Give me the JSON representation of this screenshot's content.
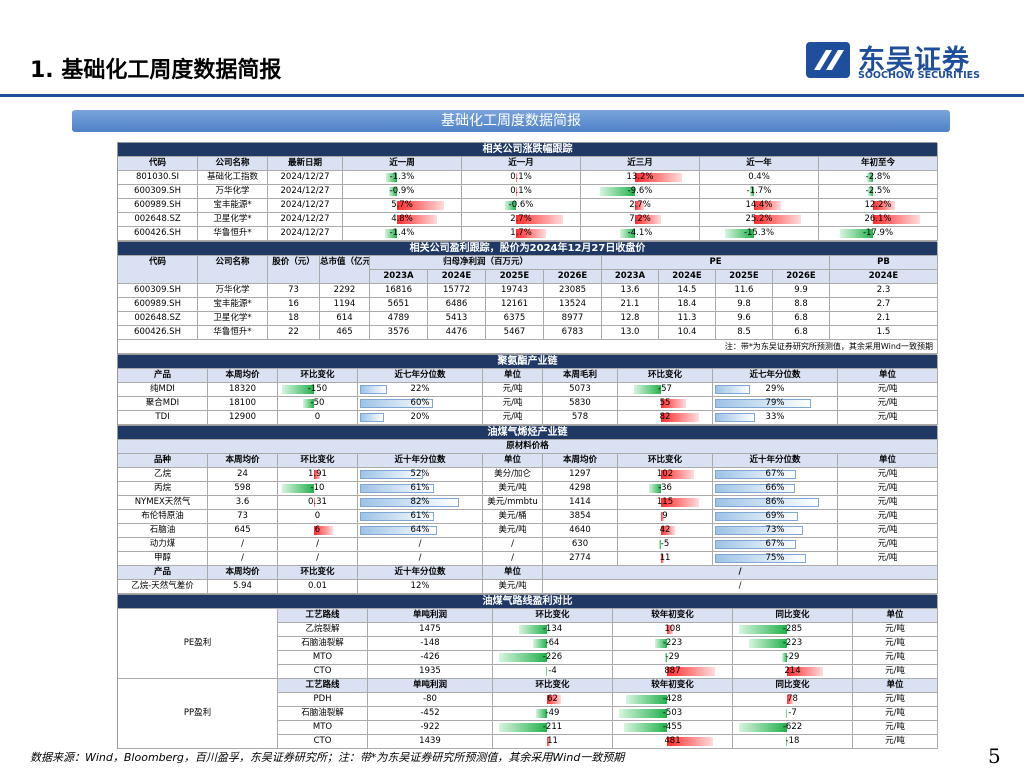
{
  "header": {
    "title": "1. 基础化工周度数据简报",
    "logo_name": "东吴证券",
    "logo_en": "SOOCHOW SECURITIES",
    "banner": "基础化工周度数据简报"
  },
  "price_tracking": {
    "title": "相关公司涨跌幅跟踪",
    "header": [
      "代码",
      "公司名称",
      "最新日期",
      "近一周",
      "近一月",
      "近三月",
      "近一年",
      "年初至今"
    ],
    "rows": [
      [
        "801030.SI",
        "基础化工指数",
        "2024/12/27",
        "-1.3%",
        "0.1%",
        "13.2%",
        "0.4%",
        "-2.8%"
      ],
      [
        "600309.SH",
        "万华化学",
        "2024/12/27",
        "-0.9%",
        "0.1%",
        "-9.6%",
        "-1.7%",
        "-2.5%"
      ],
      [
        "600989.SH",
        "宝丰能源*",
        "2024/12/27",
        "5.7%",
        "-0.6%",
        "2.7%",
        "14.4%",
        "12.2%"
      ],
      [
        "002648.SZ",
        "卫星化学*",
        "2024/12/27",
        "4.8%",
        "2.7%",
        "7.2%",
        "25.2%",
        "26.1%"
      ],
      [
        "600426.SH",
        "华鲁恒升*",
        "2024/12/27",
        "-1.4%",
        "1.7%",
        "-4.1%",
        "-15.3%",
        "-17.9%"
      ]
    ]
  },
  "profit_tracking": {
    "title": "相关公司盈利跟踪，股价为2024年12月27日收盘价",
    "header_top": [
      "代码",
      "公司名称",
      "股价（元）",
      "总市值（亿元）",
      "归母净利润（百万元）",
      "PE",
      "PB"
    ],
    "header_years": [
      "2023A",
      "2024E",
      "2025E",
      "2026E",
      "2023A",
      "2024E",
      "2025E",
      "2026E",
      "2024E"
    ],
    "rows": [
      [
        "600309.SH",
        "万华化学",
        "73",
        "2292",
        "16816",
        "15772",
        "19743",
        "23085",
        "13.6",
        "14.5",
        "11.6",
        "9.9",
        "2.3"
      ],
      [
        "600989.SH",
        "宝丰能源*",
        "16",
        "1194",
        "5651",
        "6486",
        "12161",
        "13524",
        "21.1",
        "18.4",
        "9.8",
        "8.8",
        "2.7"
      ],
      [
        "002648.SZ",
        "卫星化学*",
        "18",
        "614",
        "4789",
        "5413",
        "6375",
        "8977",
        "12.8",
        "11.3",
        "9.6",
        "6.8",
        "2.1"
      ],
      [
        "600426.SH",
        "华鲁恒升*",
        "22",
        "465",
        "3576",
        "4476",
        "5467",
        "6783",
        "13.0",
        "10.4",
        "8.5",
        "6.8",
        "1.5"
      ]
    ],
    "note": "注：带*为东吴证券研究所预测值，其余采用Wind一致预期"
  },
  "polyurethane": {
    "title": "聚氨酯产业链",
    "header": [
      "产品",
      "本周均价",
      "环比变化",
      "近七年分位数",
      "单位",
      "本周毛利",
      "环比变化",
      "近七年分位数",
      "单位"
    ],
    "rows": [
      [
        "纯MDI",
        "18320",
        "-150",
        "22%",
        "元/吨",
        "5073",
        "-57",
        "29%",
        "元/吨"
      ],
      [
        "聚合MDI",
        "18100",
        "-50",
        "60%",
        "元/吨",
        "5830",
        "55",
        "79%",
        "元/吨"
      ],
      [
        "TDI",
        "12900",
        "0",
        "20%",
        "元/吨",
        "578",
        "82",
        "33%",
        "元/吨"
      ]
    ]
  },
  "olefin": {
    "title": "油煤气烯烃产业链",
    "subtitle": "原材料价格",
    "header": [
      "品种",
      "本周均价",
      "环比变化",
      "近十年分位数",
      "单位",
      "本周均价",
      "环比变化",
      "近十年分位数",
      "单位"
    ],
    "rows": [
      [
        "乙烷",
        "24",
        "1.91",
        "52%",
        "美分/加仑",
        "1297",
        "102",
        "67%",
        "元/吨"
      ],
      [
        "丙烷",
        "598",
        "-10",
        "61%",
        "美元/吨",
        "4298",
        "-36",
        "66%",
        "元/吨"
      ],
      [
        "NYMEX天然气",
        "3.6",
        "0.31",
        "82%",
        "美元/mmbtu",
        "1414",
        "115",
        "86%",
        "元/吨"
      ],
      [
        "布伦特原油",
        "73",
        "0",
        "61%",
        "美元/桶",
        "3854",
        "9",
        "69%",
        "元/吨"
      ],
      [
        "石脑油",
        "645",
        "6",
        "64%",
        "美元/吨",
        "4640",
        "42",
        "73%",
        "元/吨"
      ],
      [
        "动力煤",
        "/",
        "/",
        "/",
        "/",
        "630",
        "-5",
        "67%",
        "元/吨"
      ],
      [
        "甲醇",
        "/",
        "/",
        "/",
        "/",
        "2774",
        "11",
        "75%",
        "元/吨"
      ]
    ],
    "header2": [
      "产品",
      "本周均价",
      "环比变化",
      "近十年分位数",
      "单位",
      "/"
    ],
    "rows2": [
      [
        "乙烷-天然气差价",
        "5.94",
        "0.01",
        "12%",
        "美元/吨",
        "/"
      ]
    ]
  },
  "route_profit": {
    "title": "油煤气路线盈利对比",
    "groups": [
      {
        "name": "PE盈利",
        "header": [
          "工艺路线",
          "单吨利润",
          "环比变化",
          "较年初变化",
          "同比变化",
          "单位"
        ],
        "rows": [
          [
            "乙烷裂解",
            "1475",
            "-134",
            "108",
            "-285",
            "元/吨"
          ],
          [
            "石脑油裂解",
            "-148",
            "-64",
            "-223",
            "-223",
            "元/吨"
          ],
          [
            "MTO",
            "-426",
            "-226",
            "-29",
            "-29",
            "元/吨"
          ],
          [
            "CTO",
            "1935",
            "-4",
            "887",
            "214",
            "元/吨"
          ]
        ]
      },
      {
        "name": "PP盈利",
        "header": [
          "工艺路线",
          "单吨利润",
          "环比变化",
          "较年初变化",
          "同比变化",
          "单位"
        ],
        "rows": [
          [
            "PDH",
            "-80",
            "62",
            "-428",
            "78",
            "元/吨"
          ],
          [
            "石脑油裂解",
            "-452",
            "-49",
            "-503",
            "-7",
            "元/吨"
          ],
          [
            "MTO",
            "-922",
            "-211",
            "-455",
            "-622",
            "元/吨"
          ],
          [
            "CTO",
            "1439",
            "11",
            "481",
            "-18",
            "元/吨"
          ]
        ]
      }
    ]
  },
  "footer": {
    "source": "数据来源：Wind，Bloomberg，百川盈孚，东吴证券研究所；注：带*为东吴证券研究所预测值，其余采用Wind一致预期",
    "page": "5"
  }
}
